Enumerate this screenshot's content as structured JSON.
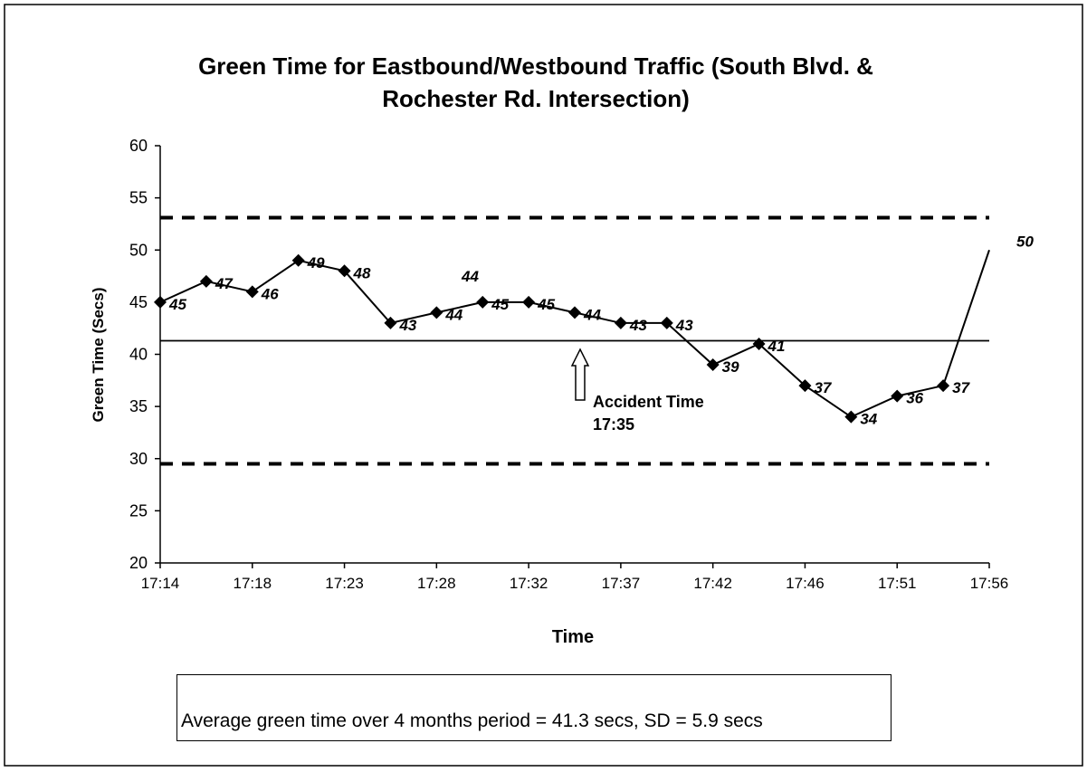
{
  "chart_data": {
    "type": "line",
    "title": [
      "Green Time for Eastbound/Westbound Traffic (South Blvd. &",
      "Rochester Rd. Intersection)"
    ],
    "x_label": "Time",
    "y_label": "Green Time (Secs)",
    "categories": [
      "17:14",
      null,
      "17:18",
      null,
      "17:23",
      null,
      "17:28",
      null,
      "17:32",
      null,
      "17:37",
      null,
      "17:42",
      null,
      "17:46",
      null,
      "17:51",
      null,
      "17:56"
    ],
    "series": [
      {
        "name": "Green Time",
        "color": "#000000",
        "values": [
          45,
          47,
          46,
          49,
          48,
          43,
          44,
          45,
          45,
          44,
          43,
          43,
          39,
          41,
          37,
          34,
          36,
          37,
          50
        ]
      }
    ],
    "ylim": [
      20,
      60
    ],
    "yticks": [
      20,
      25,
      30,
      35,
      40,
      45,
      50,
      55,
      60
    ],
    "reference_lines": [
      {
        "value": 53.1,
        "style": "dashed"
      },
      {
        "value": 41.3,
        "style": "solid"
      },
      {
        "value": 29.5,
        "style": "dashed"
      }
    ],
    "annotations": {
      "accident": [
        "Accident Time",
        "17:35"
      ],
      "stray_label": "44"
    },
    "note": "Average green time over 4 months period = 41.3 secs, SD = 5.9 secs"
  }
}
